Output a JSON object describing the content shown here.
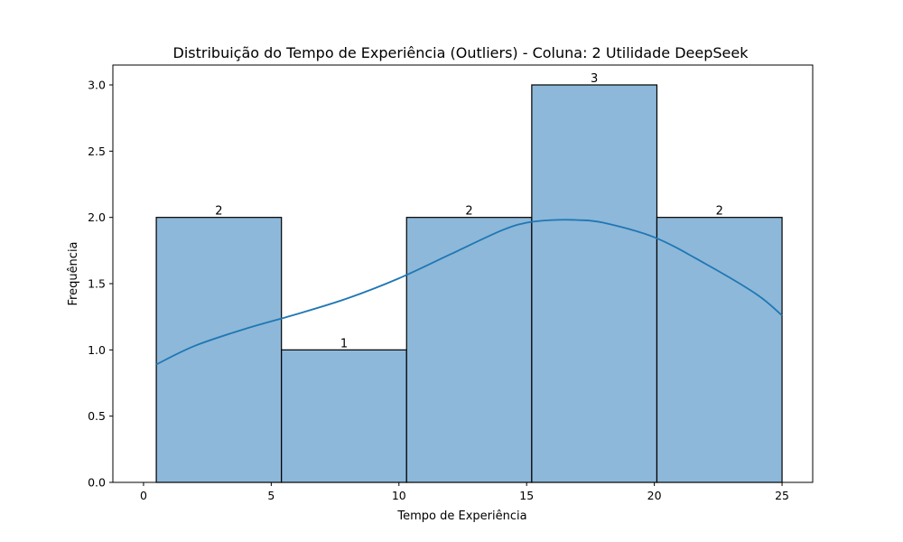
{
  "chart_data": {
    "type": "bar",
    "subtype": "histogram",
    "title": "Distribuição do Tempo de Experiência (Outliers) - Coluna: 2 Utilidade DeepSeek",
    "xlabel": "Tempo de Experiência",
    "ylabel": "Frequência",
    "bins": [
      {
        "x0": 0.5,
        "x1": 5.4,
        "count": 2
      },
      {
        "x0": 5.4,
        "x1": 10.3,
        "count": 1
      },
      {
        "x0": 10.3,
        "x1": 15.2,
        "count": 2
      },
      {
        "x0": 15.2,
        "x1": 20.1,
        "count": 3
      },
      {
        "x0": 20.1,
        "x1": 25.0,
        "count": 2
      }
    ],
    "data_labels": [
      "2",
      "1",
      "2",
      "3",
      "2"
    ],
    "kde": {
      "x": [
        0.5,
        2,
        4,
        6,
        8,
        10,
        12,
        14,
        15,
        16,
        17,
        18,
        20,
        22,
        24,
        25
      ],
      "y": [
        0.89,
        1.03,
        1.16,
        1.27,
        1.39,
        1.54,
        1.72,
        1.9,
        1.96,
        1.98,
        1.98,
        1.96,
        1.85,
        1.65,
        1.42,
        1.26
      ]
    },
    "xlim": [
      -1.2,
      26.2
    ],
    "ylim": [
      0,
      3.15
    ],
    "xticks": [
      0,
      5,
      10,
      15,
      20,
      25
    ],
    "xtick_labels": [
      "0",
      "5",
      "10",
      "15",
      "20",
      "25"
    ],
    "yticks": [
      0,
      0.5,
      1.0,
      1.5,
      2.0,
      2.5,
      3.0
    ],
    "ytick_labels": [
      "0.0",
      "0.5",
      "1.0",
      "1.5",
      "2.0",
      "2.5",
      "3.0"
    ],
    "grid": false,
    "colors": {
      "bar_fill": "#8db8d9",
      "bar_edge": "#000000",
      "kde_line": "#1f77b4"
    }
  }
}
